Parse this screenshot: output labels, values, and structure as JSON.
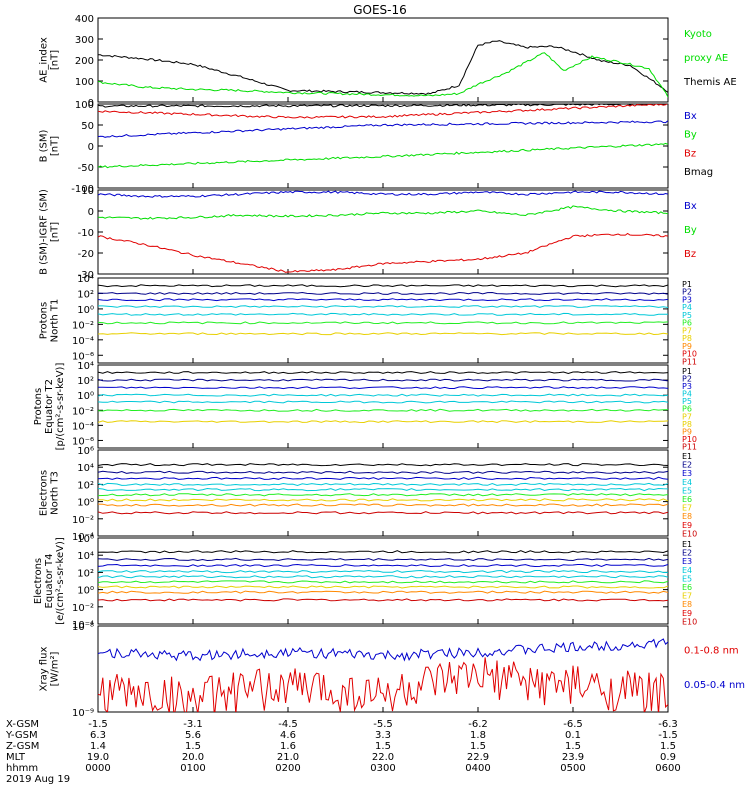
{
  "title": "GOES-16",
  "colors": {
    "black": "#000000",
    "red": "#e00000",
    "green": "#00dd00",
    "blue": "#0000cc",
    "cyan": "#00c8d8",
    "lime": "#22ee22",
    "yellow": "#e8d000",
    "orange": "#ff8800",
    "darkred": "#cc0000",
    "navy": "#000088"
  },
  "footer": {
    "row_labels": [
      "X-GSM",
      "Y-GSM",
      "Z-GSM",
      "MLT",
      "hhmm"
    ],
    "date": "2019 Aug 19",
    "columns": [
      [
        "-1.5",
        "6.3",
        "1.4",
        "19.0",
        "0000"
      ],
      [
        "-3.1",
        "5.6",
        "1.5",
        "20.0",
        "0100"
      ],
      [
        "-4.5",
        "4.6",
        "1.6",
        "21.0",
        "0200"
      ],
      [
        "-5.5",
        "3.3",
        "1.5",
        "22.0",
        "0300"
      ],
      [
        "-6.2",
        "1.8",
        "1.5",
        "22.9",
        "0400"
      ],
      [
        "-6.5",
        "0.1",
        "1.5",
        "23.9",
        "0500"
      ],
      [
        "-6.3",
        "-1.5",
        "1.5",
        "0.9",
        "0600"
      ]
    ]
  },
  "chart_data": [
    {
      "type": "line",
      "ylabel": "AE_index\n[nT]",
      "ylim": [
        0,
        400
      ],
      "ticks": [
        "0",
        "100",
        "200",
        "300",
        "400"
      ],
      "legend": [
        [
          "Kyoto",
          "green"
        ],
        [
          "proxy AE",
          "green"
        ],
        [
          "Themis AE",
          "black"
        ]
      ],
      "series": [
        {
          "color": "black",
          "x": [
            0,
            0.5,
            1,
            1.5,
            2,
            2.5,
            3,
            3.5,
            3.8,
            4.0,
            4.2,
            4.5,
            4.8,
            5.0,
            5.3,
            5.6,
            6.0
          ],
          "y": [
            225,
            205,
            180,
            120,
            55,
            50,
            45,
            40,
            80,
            270,
            290,
            260,
            265,
            240,
            195,
            175,
            50
          ]
        },
        {
          "color": "green",
          "x": [
            0,
            0.5,
            1,
            1.5,
            2,
            2.5,
            3,
            3.5,
            3.8,
            4.0,
            4.3,
            4.7,
            4.9,
            5.2,
            5.5,
            5.8,
            6.0
          ],
          "y": [
            95,
            70,
            60,
            55,
            45,
            40,
            35,
            30,
            40,
            85,
            140,
            235,
            150,
            215,
            190,
            160,
            25
          ]
        }
      ]
    },
    {
      "type": "line",
      "ylabel": "B (SM)\n[nT]",
      "ylim": [
        -100,
        100
      ],
      "ticks": [
        "-100",
        "-50",
        "0",
        "50",
        "100"
      ],
      "legend": [
        [
          "Bx",
          "blue"
        ],
        [
          "By",
          "green"
        ],
        [
          "Bz",
          "red"
        ],
        [
          "Bmag",
          "black"
        ]
      ],
      "series": [
        {
          "color": "black",
          "x": [
            0,
            3,
            6
          ],
          "y": [
            95,
            96,
            100
          ]
        },
        {
          "color": "red",
          "x": [
            0,
            2,
            3,
            6
          ],
          "y": [
            83,
            68,
            70,
            100
          ]
        },
        {
          "color": "blue",
          "x": [
            0,
            3,
            6
          ],
          "y": [
            22,
            50,
            58
          ]
        },
        {
          "color": "green",
          "x": [
            0,
            3,
            6
          ],
          "y": [
            -50,
            -25,
            5
          ]
        }
      ]
    },
    {
      "type": "line",
      "ylabel": "B (SM)-IGRF (SM)\n[nT]",
      "ylim": [
        -30,
        10
      ],
      "ticks": [
        "-30",
        "-20",
        "-10",
        "0",
        "10"
      ],
      "legend": [
        [
          "Bx",
          "blue"
        ],
        [
          "By",
          "green"
        ],
        [
          "Bz",
          "red"
        ]
      ],
      "series": [
        {
          "color": "blue",
          "x": [
            0,
            0.5,
            1,
            1.5,
            2,
            2.5,
            3,
            3.5,
            4,
            4.5,
            5,
            5.5,
            6
          ],
          "y": [
            8,
            7,
            7,
            8,
            9,
            9,
            8,
            8,
            9,
            8,
            9,
            9,
            8
          ]
        },
        {
          "color": "green",
          "x": [
            0,
            0.5,
            1,
            1.5,
            2,
            2.5,
            3,
            3.5,
            4,
            4.5,
            5,
            5.5,
            6
          ],
          "y": [
            -3,
            -3.5,
            -3,
            -2,
            -2.5,
            -2,
            -1,
            -1,
            0,
            -2,
            2,
            0,
            -1
          ]
        },
        {
          "color": "red",
          "x": [
            0,
            0.5,
            1,
            1.5,
            2,
            2.5,
            3,
            3.5,
            4,
            4.5,
            5,
            5.5,
            6
          ],
          "y": [
            -12,
            -16,
            -21,
            -25,
            -29,
            -28,
            -25,
            -24,
            -23,
            -20,
            -12,
            -11,
            -12
          ]
        }
      ]
    },
    {
      "type": "line",
      "log": true,
      "ylabel": "Protons\nNorth T1",
      "ylim": [
        -7,
        4
      ],
      "ticks": [
        "10⁻⁶",
        "10⁻⁴",
        "10⁻²",
        "10⁰",
        "10²",
        "10⁴"
      ],
      "tick_exps": [
        -6,
        -4,
        -2,
        0,
        2,
        4
      ],
      "legend": [
        [
          "P1",
          "black"
        ],
        [
          "P2",
          "navy"
        ],
        [
          "P3",
          "blue"
        ],
        [
          "P4",
          "cyan"
        ],
        [
          "P5",
          "cyan"
        ],
        [
          "P6",
          "lime"
        ],
        [
          "P7",
          "yellow"
        ],
        [
          "P8",
          "yellow"
        ],
        [
          "P9",
          "orange"
        ],
        [
          "P10",
          "red"
        ],
        [
          "P11",
          "darkred"
        ]
      ],
      "levels": [
        [
          3.0,
          "black"
        ],
        [
          2.0,
          "navy"
        ],
        [
          1.2,
          "blue"
        ],
        [
          0.3,
          "cyan"
        ],
        [
          -0.7,
          "cyan"
        ],
        [
          -1.8,
          "lime"
        ],
        [
          -3.2,
          "yellow"
        ]
      ]
    },
    {
      "type": "line",
      "log": true,
      "ylabel": "Protons\nEquator T2\n[p/(cm²-s-sr-keV)]",
      "ylim": [
        -7,
        4
      ],
      "ticks": [
        "10⁻⁶",
        "10⁻⁴",
        "10⁻²",
        "10⁰",
        "10²",
        "10⁴"
      ],
      "tick_exps": [
        -6,
        -4,
        -2,
        0,
        2,
        4
      ],
      "legend": [
        [
          "P1",
          "black"
        ],
        [
          "P2",
          "navy"
        ],
        [
          "P3",
          "blue"
        ],
        [
          "P4",
          "cyan"
        ],
        [
          "P5",
          "cyan"
        ],
        [
          "P6",
          "lime"
        ],
        [
          "P7",
          "yellow"
        ],
        [
          "P8",
          "yellow"
        ],
        [
          "P9",
          "orange"
        ],
        [
          "P10",
          "red"
        ],
        [
          "P11",
          "darkred"
        ]
      ],
      "levels": [
        [
          3.0,
          "black"
        ],
        [
          2.0,
          "navy"
        ],
        [
          1.0,
          "blue"
        ],
        [
          0.0,
          "cyan"
        ],
        [
          -0.9,
          "cyan"
        ],
        [
          -2.0,
          "lime"
        ],
        [
          -3.5,
          "yellow"
        ]
      ]
    },
    {
      "type": "line",
      "log": true,
      "ylabel": "Electrons\nNorth T3",
      "ylim": [
        -4,
        6
      ],
      "ticks": [
        "10⁻⁴",
        "10⁻²",
        "10⁰",
        "10²",
        "10⁴",
        "10⁶"
      ],
      "tick_exps": [
        -4,
        -2,
        0,
        2,
        4,
        6
      ],
      "legend": [
        [
          "E1",
          "black"
        ],
        [
          "E2",
          "navy"
        ],
        [
          "E3",
          "blue"
        ],
        [
          "E4",
          "cyan"
        ],
        [
          "E5",
          "cyan"
        ],
        [
          "E6",
          "lime"
        ],
        [
          "E7",
          "yellow"
        ],
        [
          "E8",
          "orange"
        ],
        [
          "E9",
          "red"
        ],
        [
          "E10",
          "darkred"
        ]
      ],
      "levels": [
        [
          4.3,
          "black"
        ],
        [
          3.4,
          "navy"
        ],
        [
          2.7,
          "blue"
        ],
        [
          2.0,
          "cyan"
        ],
        [
          1.4,
          "cyan"
        ],
        [
          0.8,
          "lime"
        ],
        [
          0.2,
          "yellow"
        ],
        [
          -0.4,
          "orange"
        ],
        [
          -1.3,
          "darkred"
        ]
      ]
    },
    {
      "type": "line",
      "log": true,
      "ylabel": "Electrons\nEquator T4\n[e/(cm²-s-sr-keV)]",
      "ylim": [
        -4,
        6
      ],
      "ticks": [
        "10⁻⁴",
        "10⁻²",
        "10⁰",
        "10²",
        "10⁴",
        "10⁶"
      ],
      "tick_exps": [
        -4,
        -2,
        0,
        2,
        4,
        6
      ],
      "legend": [
        [
          "E1",
          "black"
        ],
        [
          "E2",
          "navy"
        ],
        [
          "E3",
          "blue"
        ],
        [
          "E4",
          "cyan"
        ],
        [
          "E5",
          "cyan"
        ],
        [
          "E6",
          "lime"
        ],
        [
          "E7",
          "yellow"
        ],
        [
          "E8",
          "orange"
        ],
        [
          "E9",
          "red"
        ],
        [
          "E10",
          "darkred"
        ]
      ],
      "levels": [
        [
          4.4,
          "black"
        ],
        [
          3.5,
          "navy"
        ],
        [
          2.8,
          "blue"
        ],
        [
          2.1,
          "cyan"
        ],
        [
          1.5,
          "cyan"
        ],
        [
          0.9,
          "lime"
        ],
        [
          0.3,
          "yellow"
        ],
        [
          -0.3,
          "orange"
        ],
        [
          -1.2,
          "darkred"
        ]
      ]
    },
    {
      "type": "line",
      "log": true,
      "ylabel": "Xray flux\n[W/m²]",
      "ylim": [
        -9,
        -8
      ],
      "ticks": [
        "10⁻⁹",
        "10⁻⁸"
      ],
      "tick_exps": [
        -9,
        -8
      ],
      "legend": [
        [
          "0.1-0.8 nm",
          "red"
        ],
        [
          "0.05-0.4 nm",
          "blue"
        ]
      ],
      "series": [
        {
          "color": "blue",
          "x": [
            0,
            1,
            2,
            3,
            4,
            5,
            6
          ],
          "y": [
            -8.3,
            -8.35,
            -8.3,
            -8.35,
            -8.3,
            -8.25,
            -8.2
          ]
        },
        {
          "color": "red",
          "x": [
            0,
            1,
            2,
            3,
            4,
            5,
            6
          ],
          "y": [
            -8.75,
            -8.85,
            -8.7,
            -8.8,
            -8.6,
            -8.7,
            -8.8
          ]
        }
      ]
    }
  ]
}
